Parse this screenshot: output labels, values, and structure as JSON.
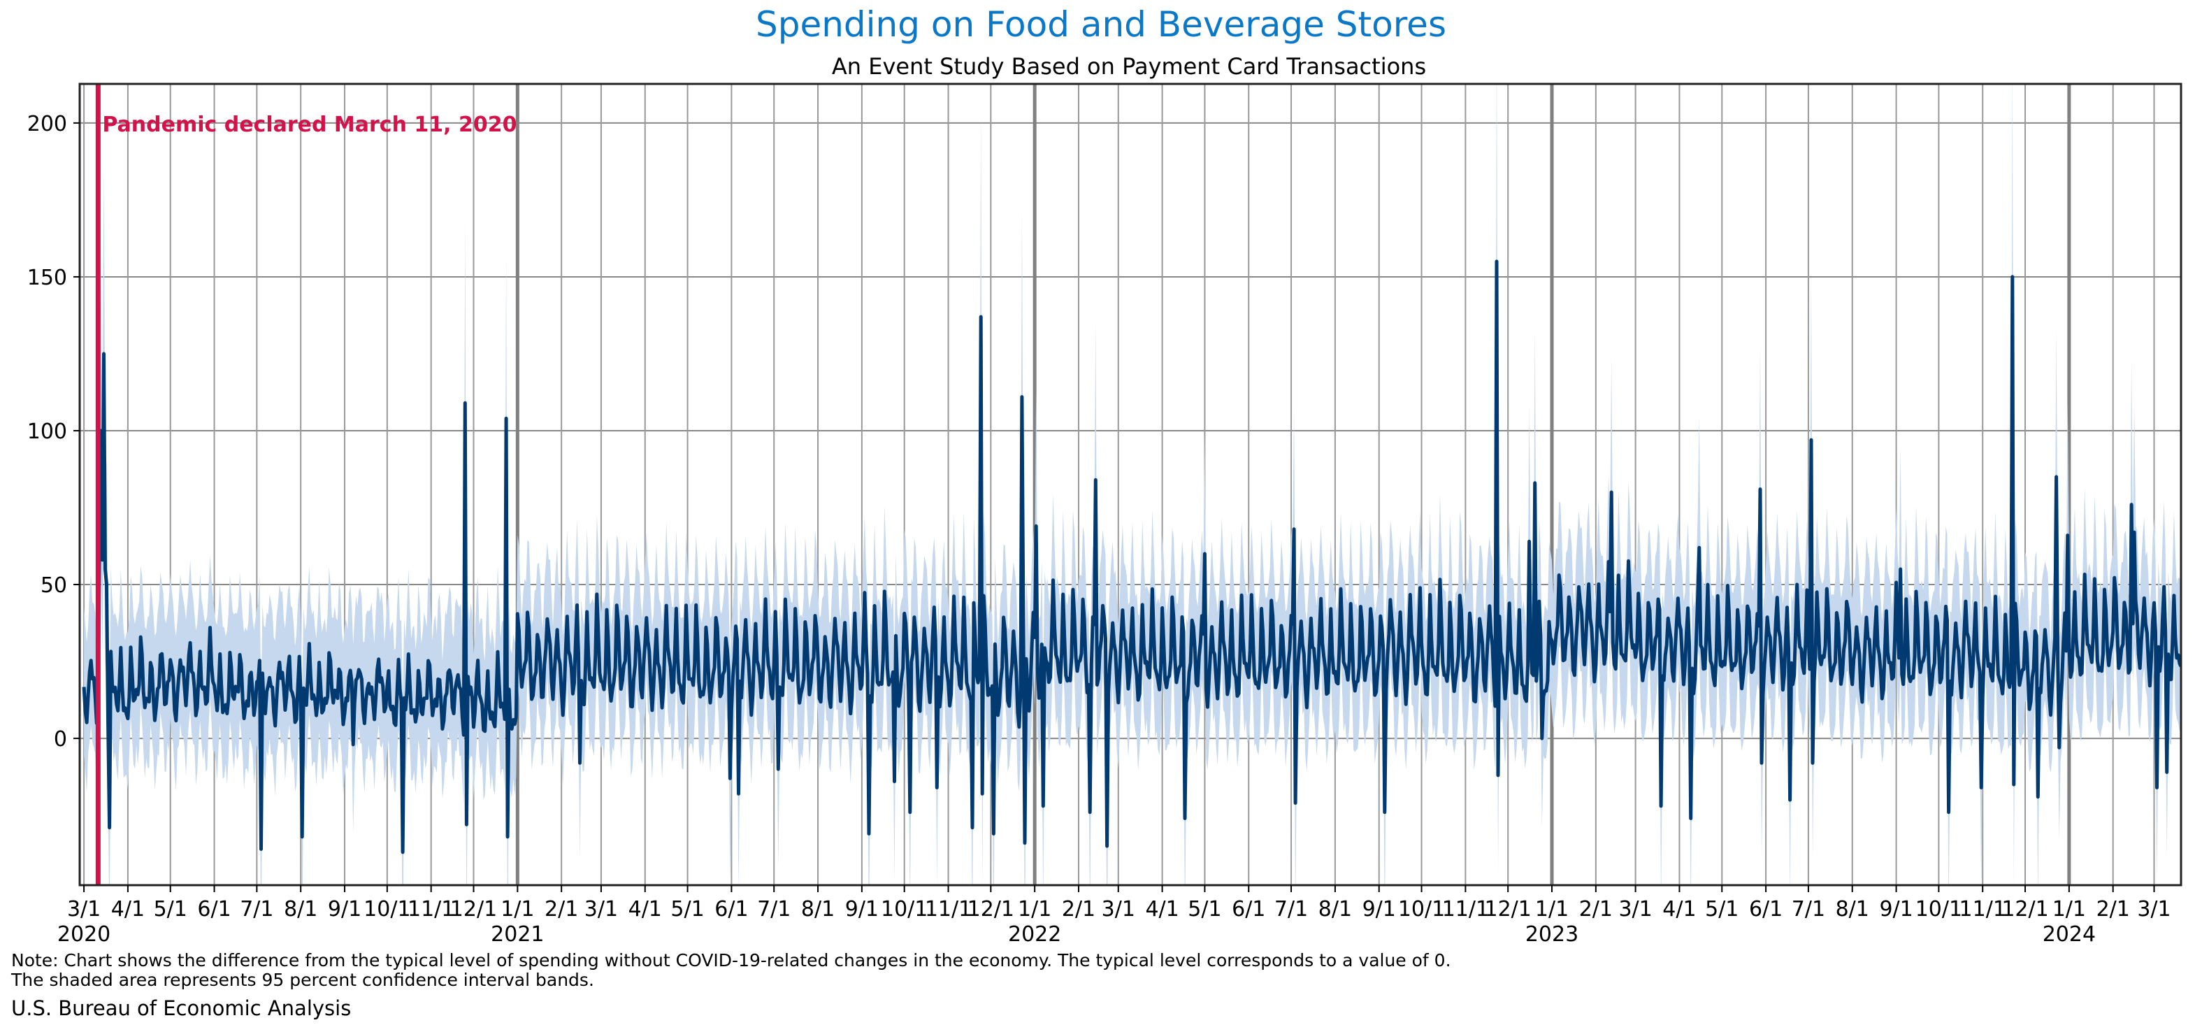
{
  "chart_data": {
    "type": "line",
    "title": "Spending on Food and Beverage Stores",
    "subtitle": "An Event Study Based on Payment Card Transactions",
    "xlabel": "",
    "ylabel": "",
    "ylim": [
      -47.7,
      212.7
    ],
    "xlim": [
      "2020-02-27",
      "2024-03-20"
    ],
    "yticks": [
      0,
      50,
      100,
      150,
      200
    ],
    "grid": true,
    "title_color": "#0a78c8",
    "line_color": "#003a70",
    "band_color": "#c5d8ee",
    "event_color": "#d4124a",
    "event": {
      "date": "2020-03-11",
      "label": "Pandemic declared March 11, 2020"
    },
    "x_tick_labels": [
      "3/1",
      "4/1",
      "5/1",
      "6/1",
      "7/1",
      "8/1",
      "9/1",
      "10/1",
      "11/1",
      "12/1",
      "1/1",
      "2/1",
      "3/1",
      "4/1",
      "5/1",
      "6/1",
      "7/1",
      "8/1",
      "9/1",
      "10/1",
      "11/1",
      "12/1",
      "1/1",
      "2/1",
      "3/1",
      "4/1",
      "5/1",
      "6/1",
      "7/1",
      "8/1",
      "9/1",
      "10/1",
      "11/1",
      "12/1",
      "1/1",
      "2/1",
      "3/1",
      "4/1",
      "5/1",
      "6/1",
      "7/1",
      "8/1",
      "9/1",
      "10/1",
      "11/1",
      "12/1",
      "1/1",
      "2/1",
      "3/1"
    ],
    "year_labels": [
      {
        "label": "2020",
        "tick": 0
      },
      {
        "label": "2021",
        "tick": 10
      },
      {
        "label": "2022",
        "tick": 22
      },
      {
        "label": "2023",
        "tick": 34
      },
      {
        "label": "2024",
        "tick": 46
      }
    ],
    "series_daily_model": {
      "name": "Difference from typical spending",
      "start": "2020-03-01",
      "end": "2024-03-20",
      "monthly_trough": [
        8,
        10,
        12,
        10,
        10,
        10,
        10,
        8,
        8,
        5,
        15,
        14,
        14,
        14,
        13,
        14,
        14,
        14,
        14,
        14,
        14,
        10,
        18,
        18,
        17,
        16,
        16,
        17,
        17,
        17,
        17,
        17,
        16,
        14,
        25,
        24,
        22,
        20,
        20,
        20,
        20,
        18,
        18,
        18,
        16,
        14,
        22,
        24,
        22
      ],
      "monthly_peak": [
        25,
        28,
        30,
        25,
        26,
        24,
        24,
        22,
        24,
        22,
        40,
        40,
        42,
        40,
        38,
        40,
        40,
        40,
        42,
        42,
        42,
        40,
        45,
        44,
        42,
        42,
        42,
        42,
        42,
        42,
        46,
        45,
        44,
        40,
        52,
        52,
        46,
        45,
        44,
        45,
        45,
        42,
        44,
        44,
        40,
        38,
        48,
        50,
        46
      ],
      "weekday_profile": [
        0.35,
        0.1,
        0.0,
        0.15,
        0.45,
        1.0,
        0.65
      ],
      "ci_upper_offset": 22,
      "ci_lower_offset": 18,
      "outliers": [
        {
          "date": "2020-03-12",
          "value": 70
        },
        {
          "date": "2020-03-13",
          "value": 100
        },
        {
          "date": "2020-03-14",
          "value": 58
        },
        {
          "date": "2020-03-15",
          "value": 125
        },
        {
          "date": "2020-03-16",
          "value": 55
        },
        {
          "date": "2020-03-17",
          "value": 50
        },
        {
          "date": "2020-03-19",
          "value": -29
        },
        {
          "date": "2020-07-04",
          "value": -36
        },
        {
          "date": "2020-08-02",
          "value": -32
        },
        {
          "date": "2020-09-07",
          "value": -2
        },
        {
          "date": "2020-10-12",
          "value": -37
        },
        {
          "date": "2020-11-25",
          "value": 109
        },
        {
          "date": "2020-11-26",
          "value": -28
        },
        {
          "date": "2020-12-24",
          "value": 104
        },
        {
          "date": "2020-12-25",
          "value": -32
        },
        {
          "date": "2021-02-14",
          "value": -8
        },
        {
          "date": "2021-05-31",
          "value": -13
        },
        {
          "date": "2021-06-06",
          "value": -18
        },
        {
          "date": "2021-07-04",
          "value": -10
        },
        {
          "date": "2021-09-06",
          "value": -31
        },
        {
          "date": "2021-09-24",
          "value": -14
        },
        {
          "date": "2021-10-05",
          "value": -24
        },
        {
          "date": "2021-10-24",
          "value": -16
        },
        {
          "date": "2021-11-18",
          "value": -29
        },
        {
          "date": "2021-11-24",
          "value": 137
        },
        {
          "date": "2021-11-25",
          "value": -18
        },
        {
          "date": "2021-12-03",
          "value": -31
        },
        {
          "date": "2021-12-23",
          "value": 111
        },
        {
          "date": "2021-12-25",
          "value": -34
        },
        {
          "date": "2022-01-02",
          "value": 69
        },
        {
          "date": "2022-01-07",
          "value": -22
        },
        {
          "date": "2022-02-09",
          "value": -24
        },
        {
          "date": "2022-02-13",
          "value": 84
        },
        {
          "date": "2022-02-21",
          "value": -35
        },
        {
          "date": "2022-04-17",
          "value": -26
        },
        {
          "date": "2022-05-01",
          "value": 60
        },
        {
          "date": "2022-07-04",
          "value": -21
        },
        {
          "date": "2022-07-03",
          "value": 68
        },
        {
          "date": "2022-09-05",
          "value": -24
        },
        {
          "date": "2022-11-23",
          "value": 155
        },
        {
          "date": "2022-11-24",
          "value": -12
        },
        {
          "date": "2022-12-16",
          "value": 64
        },
        {
          "date": "2022-12-20",
          "value": 83
        },
        {
          "date": "2022-12-25",
          "value": 0
        },
        {
          "date": "2023-02-12",
          "value": 80
        },
        {
          "date": "2023-03-19",
          "value": -22
        },
        {
          "date": "2023-04-09",
          "value": -26
        },
        {
          "date": "2023-04-15",
          "value": 62
        },
        {
          "date": "2023-05-28",
          "value": 81
        },
        {
          "date": "2023-05-29",
          "value": -8
        },
        {
          "date": "2023-06-18",
          "value": -20
        },
        {
          "date": "2023-07-03",
          "value": 97
        },
        {
          "date": "2023-07-04",
          "value": -8
        },
        {
          "date": "2023-09-04",
          "value": 55
        },
        {
          "date": "2023-10-08",
          "value": -24
        },
        {
          "date": "2023-10-31",
          "value": -16
        },
        {
          "date": "2023-11-22",
          "value": 150
        },
        {
          "date": "2023-11-23",
          "value": -15
        },
        {
          "date": "2023-12-10",
          "value": -19
        },
        {
          "date": "2023-12-23",
          "value": 85
        },
        {
          "date": "2023-12-25",
          "value": -3
        },
        {
          "date": "2023-12-31",
          "value": 66
        },
        {
          "date": "2024-02-14",
          "value": 76
        },
        {
          "date": "2024-02-16",
          "value": 67
        },
        {
          "date": "2024-03-03",
          "value": -16
        },
        {
          "date": "2024-03-10",
          "value": -11
        }
      ]
    }
  },
  "footer": {
    "note_line1": "Note: Chart shows the difference from the typical level of spending without COVID-19-related changes in the economy. The typical level corresponds to a value of 0.",
    "note_line2": "The shaded area represents 95 percent confidence interval bands.",
    "source": "U.S. Bureau of Economic Analysis"
  }
}
